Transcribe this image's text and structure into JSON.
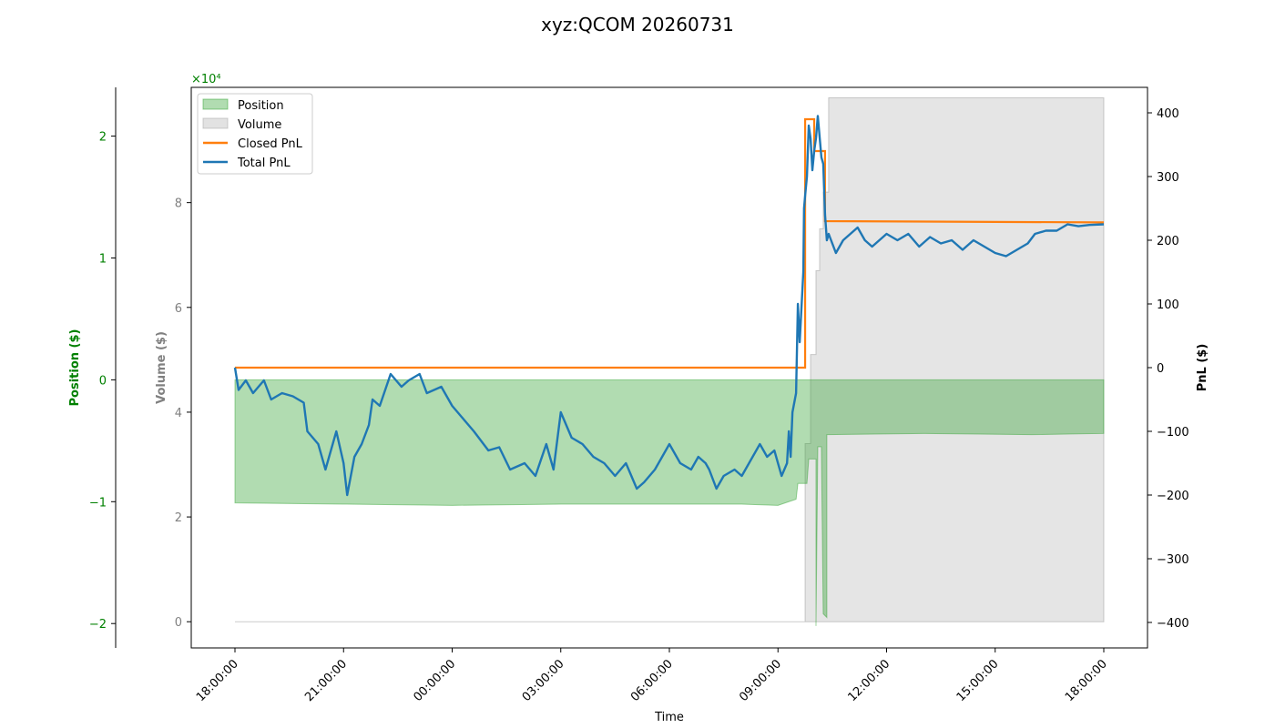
{
  "chart_data": {
    "type": "line",
    "title": "xyz:QCOM 20260731",
    "xlabel": "Time",
    "x_ticks": [
      "18:00:00",
      "21:00:00",
      "00:00:00",
      "03:00:00",
      "06:00:00",
      "09:00:00",
      "12:00:00",
      "15:00:00",
      "18:00:00"
    ],
    "x_range_hours": [
      0,
      24
    ],
    "axes": {
      "position": {
        "label": "Position ($)",
        "color": "#008000",
        "multiplier_label": "×10⁴",
        "ticks": [
          2,
          1,
          0,
          -1,
          -2
        ],
        "ylim": [
          -2.2,
          2.4
        ],
        "unit_scale": 10000
      },
      "volume": {
        "label": "Volume ($)",
        "color": "#808080",
        "ticks": [
          8,
          6,
          4,
          2,
          0
        ],
        "ylim": [
          -0.5,
          10.2
        ],
        "unit_scale": 10000
      },
      "pnl": {
        "label": "PnL ($)",
        "color": "#000000",
        "ticks": [
          400,
          300,
          200,
          100,
          0,
          -100,
          -200,
          -300,
          -400
        ],
        "ylim": [
          -440,
          440
        ]
      }
    },
    "legend": {
      "placement": "top-left",
      "entries": [
        {
          "label": "Position",
          "kind": "area",
          "color": "#2ca02c"
        },
        {
          "label": "Volume",
          "kind": "area",
          "color": "#a0a0a0"
        },
        {
          "label": "Closed PnL",
          "kind": "line",
          "color": "#ff7f0e"
        },
        {
          "label": "Total PnL",
          "kind": "line",
          "color": "#1f77b4"
        }
      ]
    },
    "series": [
      {
        "name": "Position",
        "axis": "position",
        "points": [
          [
            0,
            0
          ],
          [
            0,
            -1.01
          ],
          [
            3,
            -1.02
          ],
          [
            6,
            -1.03
          ],
          [
            9,
            -1.02
          ],
          [
            12,
            -1.02
          ],
          [
            14,
            -1.02
          ],
          [
            15,
            -1.03
          ],
          [
            15.2,
            -1.01
          ],
          [
            15.5,
            -0.98
          ],
          [
            15.55,
            -0.85
          ],
          [
            15.8,
            -0.85
          ],
          [
            15.85,
            -0.65
          ],
          [
            16.05,
            -0.65
          ],
          [
            16.05,
            -2.02
          ],
          [
            16.1,
            -0.55
          ],
          [
            16.2,
            -0.55
          ],
          [
            16.25,
            -1.92
          ],
          [
            16.35,
            -1.95
          ],
          [
            16.35,
            -0.45
          ],
          [
            19,
            -0.44
          ],
          [
            22,
            -0.45
          ],
          [
            24,
            -0.44
          ],
          [
            24,
            0
          ]
        ]
      },
      {
        "name": "Volume",
        "axis": "volume",
        "points": [
          [
            0,
            0
          ],
          [
            15.75,
            0
          ],
          [
            15.75,
            3.4
          ],
          [
            15.9,
            3.4
          ],
          [
            15.9,
            5.1
          ],
          [
            16.05,
            5.1
          ],
          [
            16.05,
            6.7
          ],
          [
            16.15,
            6.7
          ],
          [
            16.15,
            7.5
          ],
          [
            16.25,
            7.5
          ],
          [
            16.25,
            8.2
          ],
          [
            16.4,
            8.2
          ],
          [
            16.4,
            10
          ],
          [
            24,
            10
          ]
        ]
      },
      {
        "name": "Closed PnL",
        "axis": "pnl",
        "points": [
          [
            0,
            0
          ],
          [
            15.75,
            0
          ],
          [
            15.75,
            390
          ],
          [
            16.0,
            390
          ],
          [
            16.0,
            340
          ],
          [
            16.3,
            340
          ],
          [
            16.3,
            230
          ],
          [
            24,
            228
          ]
        ]
      },
      {
        "name": "Total PnL",
        "axis": "pnl",
        "points": [
          [
            0,
            0
          ],
          [
            0.1,
            -35
          ],
          [
            0.3,
            -20
          ],
          [
            0.5,
            -40
          ],
          [
            0.8,
            -20
          ],
          [
            1.0,
            -50
          ],
          [
            1.3,
            -40
          ],
          [
            1.6,
            -45
          ],
          [
            1.9,
            -55
          ],
          [
            2.0,
            -100
          ],
          [
            2.3,
            -120
          ],
          [
            2.5,
            -160
          ],
          [
            2.8,
            -100
          ],
          [
            3.0,
            -150
          ],
          [
            3.1,
            -200
          ],
          [
            3.3,
            -140
          ],
          [
            3.5,
            -120
          ],
          [
            3.7,
            -90
          ],
          [
            3.8,
            -50
          ],
          [
            4.0,
            -60
          ],
          [
            4.3,
            -10
          ],
          [
            4.6,
            -30
          ],
          [
            4.8,
            -20
          ],
          [
            5.1,
            -10
          ],
          [
            5.3,
            -40
          ],
          [
            5.7,
            -30
          ],
          [
            6.0,
            -60
          ],
          [
            6.3,
            -80
          ],
          [
            6.6,
            -100
          ],
          [
            7.0,
            -130
          ],
          [
            7.3,
            -125
          ],
          [
            7.6,
            -160
          ],
          [
            8.0,
            -150
          ],
          [
            8.3,
            -170
          ],
          [
            8.6,
            -120
          ],
          [
            8.8,
            -160
          ],
          [
            9.0,
            -70
          ],
          [
            9.3,
            -110
          ],
          [
            9.6,
            -120
          ],
          [
            9.9,
            -140
          ],
          [
            10.2,
            -150
          ],
          [
            10.5,
            -170
          ],
          [
            10.8,
            -150
          ],
          [
            11.1,
            -190
          ],
          [
            11.3,
            -180
          ],
          [
            11.6,
            -160
          ],
          [
            11.8,
            -140
          ],
          [
            12.0,
            -120
          ],
          [
            12.3,
            -150
          ],
          [
            12.6,
            -160
          ],
          [
            12.8,
            -140
          ],
          [
            13.0,
            -150
          ],
          [
            13.1,
            -160
          ],
          [
            13.3,
            -190
          ],
          [
            13.5,
            -170
          ],
          [
            13.8,
            -160
          ],
          [
            14.0,
            -170
          ],
          [
            14.2,
            -150
          ],
          [
            14.5,
            -120
          ],
          [
            14.7,
            -140
          ],
          [
            14.9,
            -130
          ],
          [
            15.1,
            -170
          ],
          [
            15.25,
            -150
          ],
          [
            15.3,
            -100
          ],
          [
            15.35,
            -140
          ],
          [
            15.4,
            -70
          ],
          [
            15.5,
            -40
          ],
          [
            15.55,
            100
          ],
          [
            15.6,
            40
          ],
          [
            15.7,
            150
          ],
          [
            15.72,
            250
          ],
          [
            15.75,
            270
          ],
          [
            15.8,
            300
          ],
          [
            15.85,
            380
          ],
          [
            15.9,
            360
          ],
          [
            15.95,
            310
          ],
          [
            16.0,
            340
          ],
          [
            16.05,
            360
          ],
          [
            16.1,
            395
          ],
          [
            16.2,
            330
          ],
          [
            16.25,
            320
          ],
          [
            16.3,
            240
          ],
          [
            16.35,
            200
          ],
          [
            16.4,
            210
          ],
          [
            16.6,
            180
          ],
          [
            16.8,
            200
          ],
          [
            17.0,
            210
          ],
          [
            17.2,
            220
          ],
          [
            17.4,
            200
          ],
          [
            17.6,
            190
          ],
          [
            18.0,
            210
          ],
          [
            18.3,
            200
          ],
          [
            18.6,
            210
          ],
          [
            18.9,
            190
          ],
          [
            19.2,
            205
          ],
          [
            19.5,
            195
          ],
          [
            19.8,
            200
          ],
          [
            20.1,
            185
          ],
          [
            20.4,
            200
          ],
          [
            20.7,
            190
          ],
          [
            21.0,
            180
          ],
          [
            21.3,
            175
          ],
          [
            21.6,
            185
          ],
          [
            21.9,
            195
          ],
          [
            22.1,
            210
          ],
          [
            22.4,
            215
          ],
          [
            22.7,
            215
          ],
          [
            23.0,
            225
          ],
          [
            23.3,
            222
          ],
          [
            23.6,
            224
          ],
          [
            24,
            225
          ]
        ]
      }
    ]
  }
}
